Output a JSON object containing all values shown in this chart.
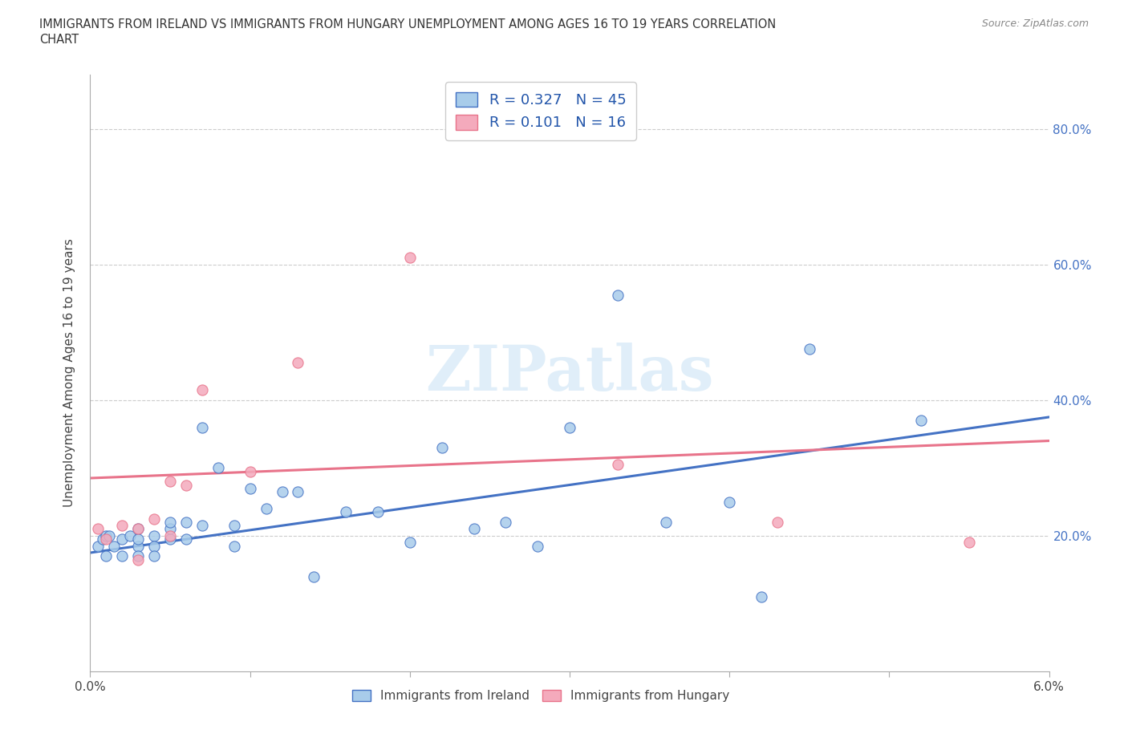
{
  "title_line1": "IMMIGRANTS FROM IRELAND VS IMMIGRANTS FROM HUNGARY UNEMPLOYMENT AMONG AGES 16 TO 19 YEARS CORRELATION",
  "title_line2": "CHART",
  "source": "Source: ZipAtlas.com",
  "ylabel": "Unemployment Among Ages 16 to 19 years",
  "ytick_labels": [
    "20.0%",
    "40.0%",
    "60.0%",
    "80.0%"
  ],
  "ytick_values": [
    0.2,
    0.4,
    0.6,
    0.8
  ],
  "xlim": [
    0.0,
    0.06
  ],
  "ylim": [
    0.0,
    0.88
  ],
  "r_ireland": "0.327",
  "n_ireland": "45",
  "r_hungary": "0.101",
  "n_hungary": "16",
  "color_ireland": "#A8CCEA",
  "color_hungary": "#F4AABC",
  "color_ireland_line": "#4472C4",
  "color_hungary_line": "#E8738A",
  "legend_label_ireland": "Immigrants from Ireland",
  "legend_label_hungary": "Immigrants from Hungary",
  "watermark": "ZIPatlas",
  "ireland_x": [
    0.0005,
    0.0008,
    0.001,
    0.001,
    0.0012,
    0.0015,
    0.002,
    0.002,
    0.0025,
    0.003,
    0.003,
    0.003,
    0.003,
    0.004,
    0.004,
    0.004,
    0.005,
    0.005,
    0.005,
    0.006,
    0.006,
    0.007,
    0.007,
    0.008,
    0.009,
    0.009,
    0.01,
    0.011,
    0.012,
    0.013,
    0.014,
    0.016,
    0.018,
    0.02,
    0.022,
    0.024,
    0.026,
    0.028,
    0.03,
    0.033,
    0.036,
    0.04,
    0.042,
    0.045,
    0.052
  ],
  "ireland_y": [
    0.185,
    0.195,
    0.2,
    0.17,
    0.2,
    0.185,
    0.195,
    0.17,
    0.2,
    0.185,
    0.17,
    0.21,
    0.195,
    0.2,
    0.185,
    0.17,
    0.195,
    0.21,
    0.22,
    0.195,
    0.22,
    0.36,
    0.215,
    0.3,
    0.215,
    0.185,
    0.27,
    0.24,
    0.265,
    0.265,
    0.14,
    0.235,
    0.235,
    0.19,
    0.33,
    0.21,
    0.22,
    0.185,
    0.36,
    0.555,
    0.22,
    0.25,
    0.11,
    0.475,
    0.37
  ],
  "hungary_x": [
    0.0005,
    0.001,
    0.002,
    0.003,
    0.003,
    0.004,
    0.005,
    0.005,
    0.006,
    0.007,
    0.01,
    0.013,
    0.02,
    0.033,
    0.043,
    0.055
  ],
  "hungary_y": [
    0.21,
    0.195,
    0.215,
    0.21,
    0.165,
    0.225,
    0.2,
    0.28,
    0.275,
    0.415,
    0.295,
    0.455,
    0.61,
    0.305,
    0.22,
    0.19
  ],
  "ireland_trendline_x0": 0.0,
  "ireland_trendline_y0": 0.175,
  "ireland_trendline_x1": 0.06,
  "ireland_trendline_y1": 0.375,
  "hungary_trendline_x0": 0.0,
  "hungary_trendline_y0": 0.285,
  "hungary_trendline_x1": 0.06,
  "hungary_trendline_y1": 0.34
}
